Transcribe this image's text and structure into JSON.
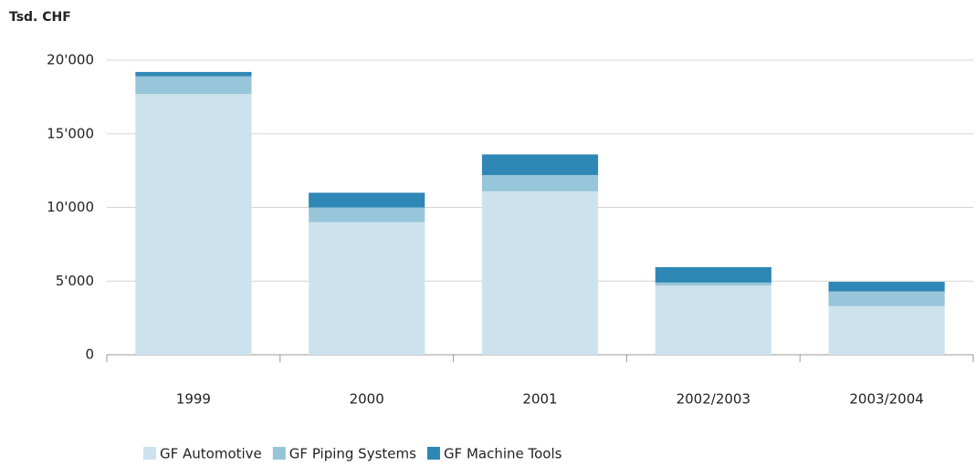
{
  "chart_data": {
    "type": "stacked_bar",
    "title": "Tsd. CHF",
    "categories": [
      "1999",
      "2000",
      "2001",
      "2002/2003",
      "2003/2004"
    ],
    "series": [
      {
        "name": "GF Automotive",
        "color": "#cce3ed",
        "values": [
          17700,
          9000,
          11100,
          4700,
          3300
        ]
      },
      {
        "name": "GF Piping Systems",
        "color": "#97c5da",
        "values": [
          1200,
          1000,
          1100,
          200,
          1000
        ]
      },
      {
        "name": "GF Machine Tools",
        "color": "#2f87b5",
        "values": [
          300,
          1000,
          1400,
          1050,
          650
        ]
      }
    ],
    "ylim": [
      0,
      20000
    ],
    "yticks": [
      0,
      {
        "value": 5000,
        "label": "5'000"
      },
      {
        "value": 10000,
        "label": "10'000"
      },
      {
        "value": 15000,
        "label": "15'000"
      },
      {
        "value": 20000,
        "label": "20'000"
      }
    ],
    "grid": true,
    "legend": "bottom"
  }
}
